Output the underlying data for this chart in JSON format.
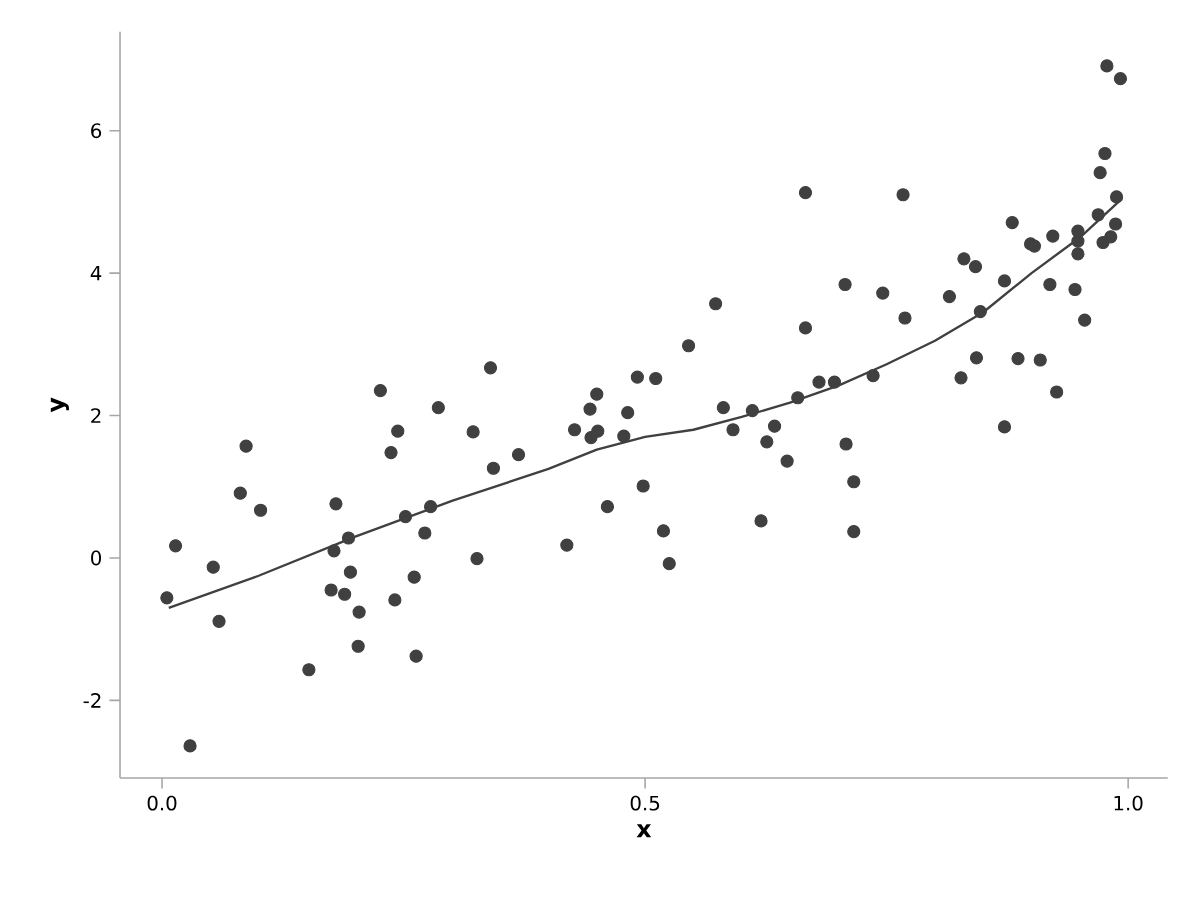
{
  "chart_data": {
    "type": "scatter",
    "xlabel": "x",
    "ylabel": "y",
    "xlim": [
      -0.0435,
      1.041
    ],
    "ylim": [
      -3.09,
      7.39
    ],
    "xticks": [
      {
        "value": 0,
        "label": "0.0"
      },
      {
        "value": 0.5,
        "label": "0.5"
      },
      {
        "value": 1,
        "label": "1.0"
      }
    ],
    "yticks": [
      -2,
      0,
      2,
      4,
      6
    ],
    "series": [
      {
        "type": "scatter",
        "marker": "circle",
        "color": "#404040",
        "x": [
          0.005,
          0.014,
          0.029,
          0.053,
          0.059,
          0.081,
          0.087,
          0.102,
          0.152,
          0.175,
          0.178,
          0.18,
          0.189,
          0.193,
          0.195,
          0.204,
          0.203,
          0.226,
          0.237,
          0.241,
          0.244,
          0.252,
          0.261,
          0.263,
          0.272,
          0.278,
          0.286,
          0.322,
          0.326,
          0.34,
          0.343,
          0.369,
          0.419,
          0.427,
          0.443,
          0.444,
          0.45,
          0.451,
          0.461,
          0.478,
          0.482,
          0.492,
          0.498,
          0.511,
          0.519,
          0.525,
          0.545,
          0.573,
          0.581,
          0.591,
          0.611,
          0.62,
          0.626,
          0.634,
          0.647,
          0.658,
          0.666,
          0.666,
          0.68,
          0.696,
          0.707,
          0.708,
          0.716,
          0.716,
          0.736,
          0.746,
          0.767,
          0.769,
          0.815,
          0.827,
          0.83,
          0.842,
          0.843,
          0.847,
          0.872,
          0.872,
          0.88,
          0.886,
          0.899,
          0.903,
          0.909,
          0.919,
          0.922,
          0.926,
          0.945,
          0.948,
          0.948,
          0.948,
          0.955,
          0.969,
          0.971,
          0.974,
          0.976,
          0.978,
          0.982,
          0.987,
          0.988,
          0.992
        ],
        "values": [
          -0.56,
          0.17,
          -2.64,
          -0.13,
          -0.89,
          0.91,
          1.57,
          0.67,
          -1.57,
          -0.45,
          0.1,
          0.76,
          -0.51,
          0.28,
          -0.2,
          -0.76,
          -1.24,
          2.35,
          1.48,
          -0.59,
          1.78,
          0.58,
          -0.27,
          -1.38,
          0.35,
          0.72,
          2.11,
          1.77,
          -0.01,
          2.67,
          1.26,
          1.45,
          0.18,
          1.8,
          2.09,
          1.69,
          2.3,
          1.78,
          0.72,
          1.71,
          2.04,
          2.54,
          1.01,
          2.52,
          0.38,
          -0.08,
          2.98,
          3.57,
          2.11,
          1.8,
          2.07,
          0.52,
          1.63,
          1.85,
          1.36,
          2.25,
          5.13,
          3.23,
          2.47,
          2.47,
          3.84,
          1.6,
          1.07,
          0.37,
          2.56,
          3.72,
          5.1,
          3.37,
          3.67,
          2.53,
          4.2,
          4.09,
          2.81,
          3.46,
          1.84,
          3.89,
          4.71,
          2.8,
          4.41,
          4.38,
          2.78,
          3.84,
          4.52,
          2.33,
          3.77,
          4.59,
          4.45,
          4.27,
          3.34,
          4.82,
          5.41,
          4.43,
          5.68,
          6.91,
          4.51,
          4.69,
          5.07,
          6.73
        ]
      },
      {
        "type": "line",
        "color": "#404040",
        "x": [
          0.007,
          0.1,
          0.2,
          0.3,
          0.4,
          0.45,
          0.5,
          0.55,
          0.6,
          0.65,
          0.7,
          0.75,
          0.8,
          0.85,
          0.9,
          0.95,
          0.99
        ],
        "values": [
          -0.7,
          -0.25,
          0.3,
          0.8,
          1.25,
          1.52,
          1.7,
          1.8,
          1.98,
          2.18,
          2.42,
          2.72,
          3.05,
          3.45,
          4.0,
          4.5,
          5.0
        ]
      }
    ]
  }
}
